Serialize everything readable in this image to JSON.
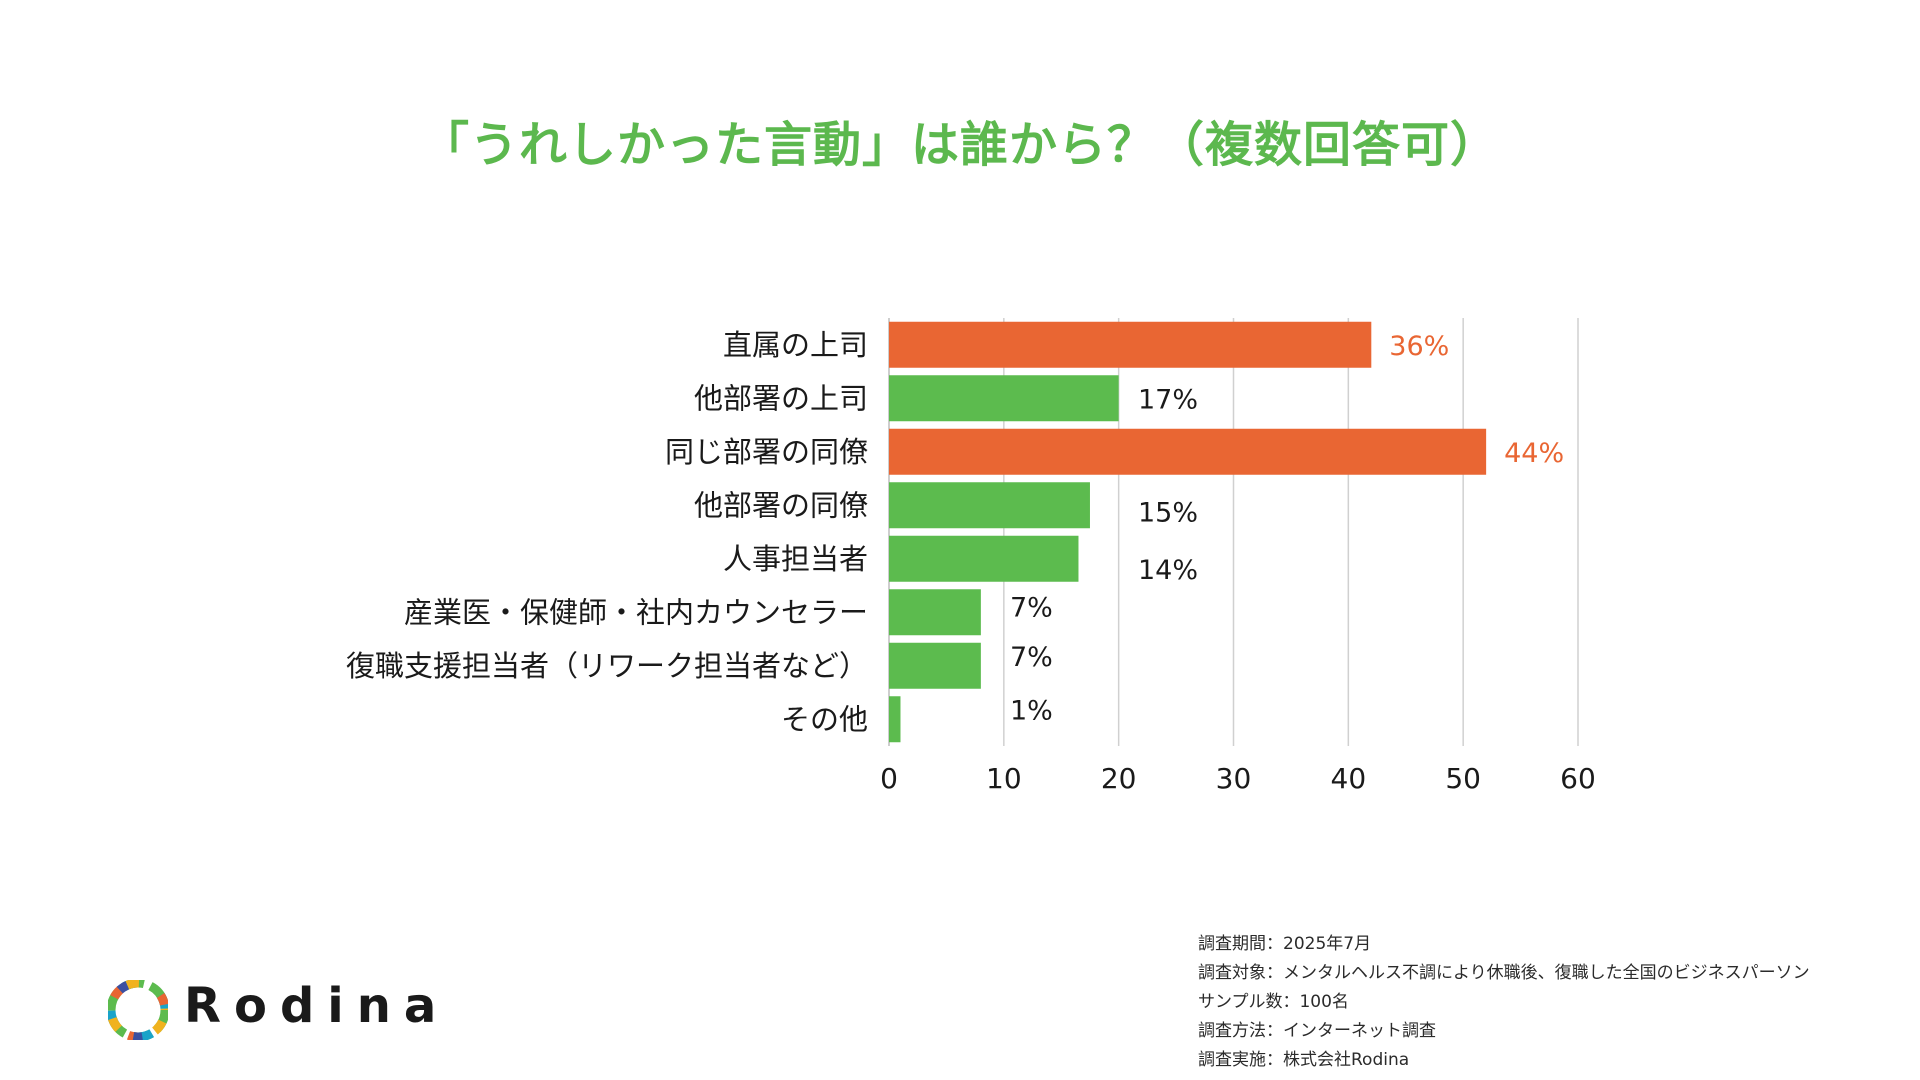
{
  "chart_data": {
    "type": "bar",
    "orientation": "horizontal",
    "title": "「うれしかった言動」は誰から？（複数回答可）",
    "categories": [
      "直属の上司",
      "他部署の上司",
      "同じ部署の同僚",
      "他部署の同僚",
      "人事担当者",
      "産業医・保健師・社内カウンセラー",
      "復職支援担当者（リワーク担当者など）",
      "その他"
    ],
    "values": [
      42,
      20,
      52,
      17.5,
      16.5,
      8,
      8,
      1
    ],
    "data_labels": [
      "36%",
      "17%",
      "44%",
      "15%",
      "14%",
      "7%",
      "7%",
      "1%"
    ],
    "highlight": [
      true,
      false,
      true,
      false,
      false,
      false,
      false,
      false
    ],
    "xlim": [
      0,
      60
    ],
    "xticks": [
      "0",
      "10",
      "20",
      "30",
      "40",
      "50",
      "60"
    ],
    "grid": true,
    "colors": {
      "highlight": "#e96633",
      "default": "#5cbb4e",
      "grid": "#d0d0d0"
    }
  },
  "notes": [
    "調査期間：2025年7月",
    "調査対象：メンタルヘルス不調により休職後、復職した全国のビジネスパーソン",
    "サンプル数：100名",
    "調査方法：インターネット調査",
    "調査実施：株式会社Rodina"
  ],
  "logo": {
    "text": "Rodina",
    "icon": "rodina-circle-mark-icon"
  }
}
